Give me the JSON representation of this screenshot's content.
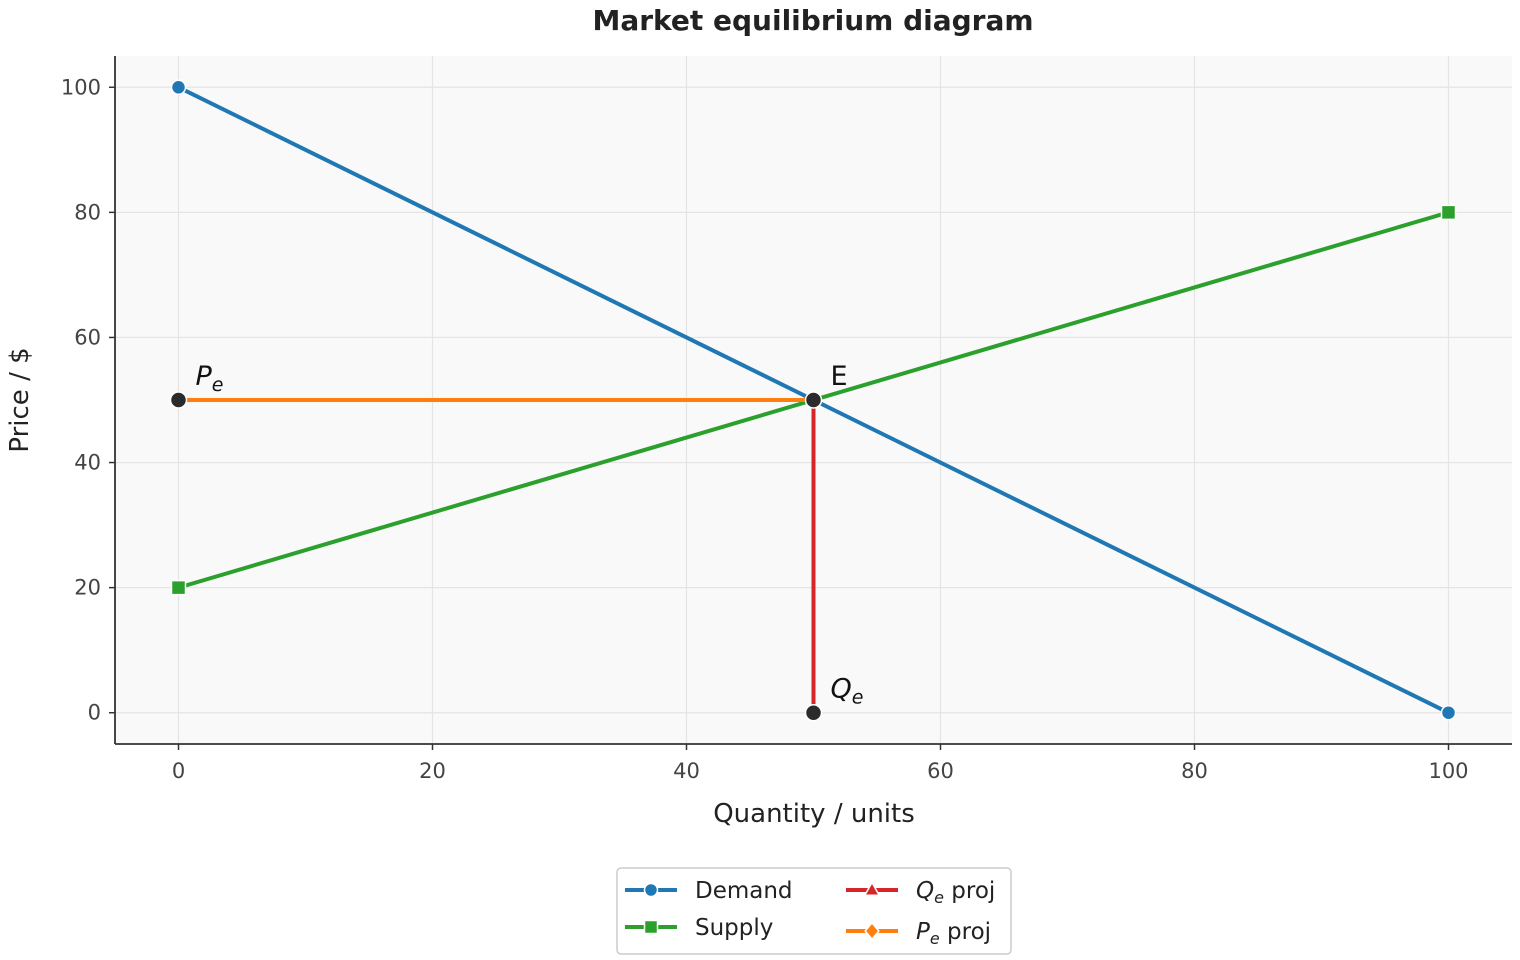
{
  "chart_data": {
    "type": "line",
    "title": "Market equilibrium diagram",
    "xlabel": "Quantity / units",
    "ylabel": "Price / $",
    "xlim": [
      -5,
      105
    ],
    "ylim": [
      -5,
      105
    ],
    "xticks": [
      0,
      20,
      40,
      60,
      80,
      100
    ],
    "yticks": [
      0,
      20,
      40,
      60,
      80,
      100
    ],
    "grid": true,
    "legend_position": "bottom-center",
    "series": [
      {
        "name": "Demand",
        "color": "#1f77b4",
        "marker": "circle",
        "x": [
          0,
          100
        ],
        "y": [
          100,
          0
        ]
      },
      {
        "name": "Supply",
        "color": "#2ca02c",
        "marker": "square",
        "x": [
          0,
          100
        ],
        "y": [
          20,
          80
        ]
      },
      {
        "name_italic": "Q",
        "name_sub": "e",
        "name_rest": " proj",
        "color": "#d62728",
        "marker": "triangle",
        "x": [
          50,
          50
        ],
        "y": [
          0,
          50
        ]
      },
      {
        "name_italic": "P",
        "name_sub": "e",
        "name_rest": " proj",
        "color": "#ff7f0e",
        "marker": "diamond",
        "x": [
          0,
          50
        ],
        "y": [
          50,
          50
        ]
      }
    ],
    "points": [
      {
        "label": "E",
        "x": 50,
        "y": 50
      },
      {
        "label": "",
        "x": 50,
        "y": 0
      },
      {
        "label": "",
        "x": 0,
        "y": 50
      }
    ],
    "annotations": [
      {
        "italic": "",
        "sub": "",
        "text": "E",
        "x": 50,
        "y": 50
      },
      {
        "italic": "Q",
        "sub": "e",
        "text": "",
        "x": 50,
        "y": 0
      },
      {
        "italic": "P",
        "sub": "e",
        "text": "",
        "x": 0,
        "y": 50
      }
    ],
    "point_color": "#2b2b2b"
  }
}
